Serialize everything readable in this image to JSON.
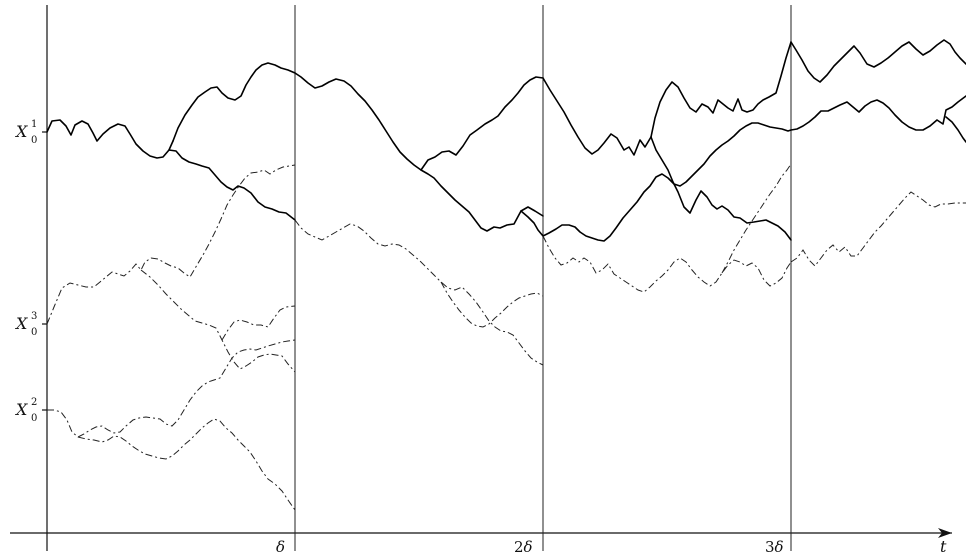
{
  "axis": {
    "t_label": "t",
    "ticks": [
      {
        "pre": "",
        "sym": "δ"
      },
      {
        "pre": "2",
        "sym": "δ"
      },
      {
        "pre": "3",
        "sym": "δ"
      }
    ]
  },
  "initial_labels": [
    {
      "base": "X",
      "sub": "0",
      "sup": "1"
    },
    {
      "base": "X",
      "sub": "0",
      "sup": "3"
    },
    {
      "base": "X",
      "sub": "0",
      "sup": "2"
    }
  ]
}
